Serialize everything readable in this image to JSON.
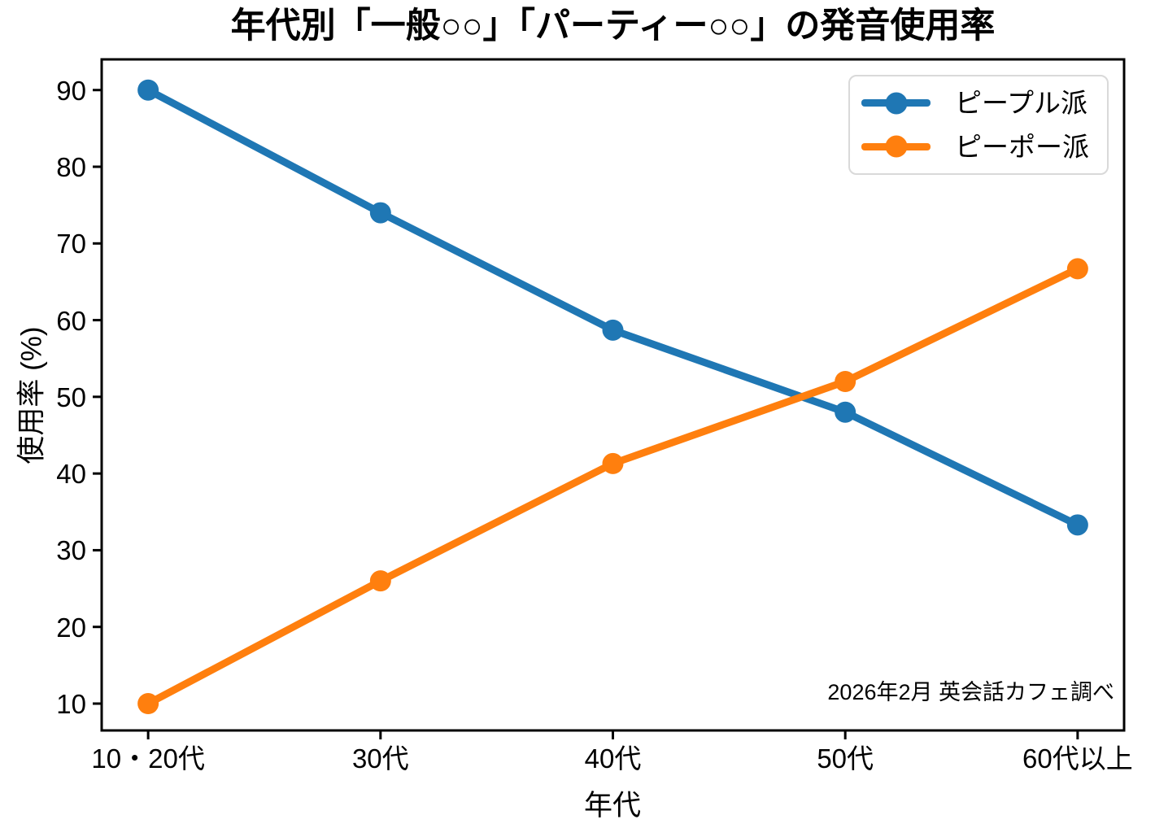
{
  "chart_data": {
    "type": "line",
    "title": "年代別「一般○○」「パーティー○○」の発音使用率",
    "xlabel": "年代",
    "ylabel": "使用率 (%)",
    "categories": [
      "10・20代",
      "30代",
      "40代",
      "50代",
      "60代以上"
    ],
    "series": [
      {
        "name": "ピープル派",
        "color": "#1f77b4",
        "values": [
          90,
          74,
          58.7,
          48,
          33.3
        ]
      },
      {
        "name": "ピーポー派",
        "color": "#ff7f0e",
        "values": [
          10,
          26,
          41.3,
          52,
          66.7
        ]
      }
    ],
    "y_ticks": [
      10,
      20,
      30,
      40,
      50,
      60,
      70,
      80,
      90
    ],
    "ylim": [
      6.5,
      94
    ],
    "grid": false,
    "legend_position": "top-right",
    "annotation": "2026年2月 英会話カフェ調べ",
    "axis_color": "#000000"
  }
}
